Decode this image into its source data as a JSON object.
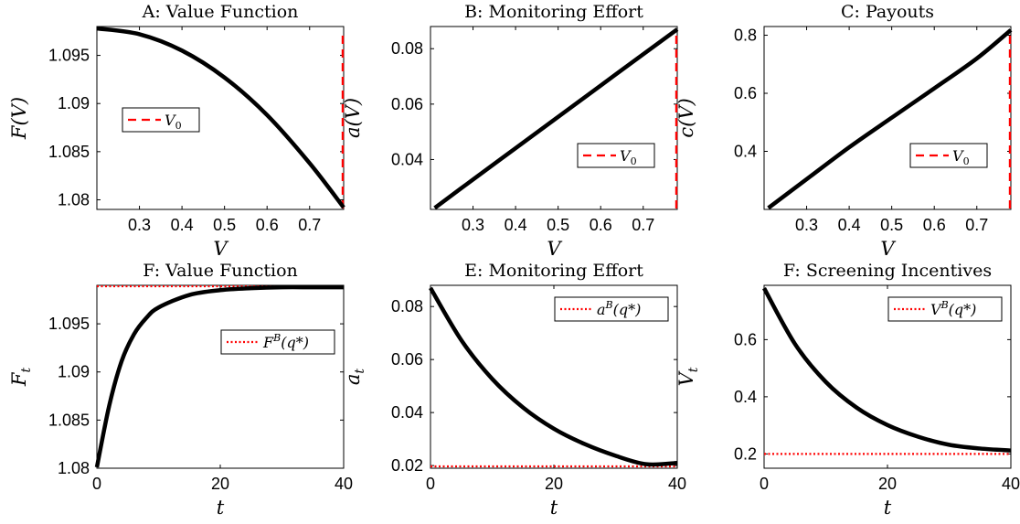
{
  "colors": {
    "curve": "#000000",
    "ref": "#ff0000"
  },
  "chart_data": [
    {
      "type": "line",
      "title": "A: Value Function",
      "xlabel": "V",
      "ylabel": "F(V)",
      "xlim": [
        0.2,
        0.78
      ],
      "ylim": [
        1.079,
        1.098
      ],
      "xticks": [
        0.3,
        0.4,
        0.5,
        0.6,
        0.7
      ],
      "xticklabels": [
        "0.3",
        "0.4",
        "0.5",
        "0.6",
        "0.7"
      ],
      "yticks": [
        1.08,
        1.085,
        1.09,
        1.095
      ],
      "yticklabels": [
        "1.08",
        "1.085",
        "1.09",
        "1.095"
      ],
      "series": [
        {
          "x": [
            0.2,
            0.3,
            0.4,
            0.5,
            0.6,
            0.7,
            0.78
          ],
          "y": [
            1.0978,
            1.0972,
            1.0955,
            1.0927,
            1.0888,
            1.0838,
            1.0792
          ]
        }
      ],
      "ref": {
        "orient": "v",
        "value": 0.78,
        "style": "dashed",
        "label": "V",
        "sub": "0",
        "sup": "",
        "tail": ""
      },
      "legend": "middle-left"
    },
    {
      "type": "line",
      "title": "B: Monitoring Effort",
      "xlabel": "V",
      "ylabel": "a(V)",
      "xlim": [
        0.2,
        0.78
      ],
      "ylim": [
        0.022,
        0.088
      ],
      "xticks": [
        0.3,
        0.4,
        0.5,
        0.6,
        0.7
      ],
      "xticklabels": [
        "0.3",
        "0.4",
        "0.5",
        "0.6",
        "0.7"
      ],
      "yticks": [
        0.04,
        0.06,
        0.08
      ],
      "yticklabels": [
        "0.04",
        "0.06",
        "0.08"
      ],
      "series": [
        {
          "x": [
            0.21,
            0.3,
            0.4,
            0.5,
            0.6,
            0.7,
            0.78
          ],
          "y": [
            0.0225,
            0.0328,
            0.0441,
            0.0554,
            0.0667,
            0.078,
            0.087
          ]
        }
      ],
      "ref": {
        "orient": "v",
        "value": 0.78,
        "style": "dashed",
        "label": "V",
        "sub": "0",
        "sup": "",
        "tail": ""
      },
      "legend": "bottom-right"
    },
    {
      "type": "line",
      "title": "C: Payouts",
      "xlabel": "V",
      "ylabel": "c(V)",
      "xlim": [
        0.2,
        0.78
      ],
      "ylim": [
        0.2,
        0.83
      ],
      "xticks": [
        0.3,
        0.4,
        0.5,
        0.6,
        0.7
      ],
      "xticklabels": [
        "0.3",
        "0.4",
        "0.5",
        "0.6",
        "0.7"
      ],
      "yticks": [
        0.4,
        0.6,
        0.8
      ],
      "yticklabels": [
        "0.4",
        "0.6",
        "0.8"
      ],
      "series": [
        {
          "x": [
            0.21,
            0.3,
            0.4,
            0.5,
            0.6,
            0.7,
            0.78
          ],
          "y": [
            0.205,
            0.304,
            0.414,
            0.516,
            0.617,
            0.72,
            0.818
          ]
        }
      ],
      "ref": {
        "orient": "v",
        "value": 0.78,
        "style": "dashed",
        "label": "V",
        "sub": "0",
        "sup": "",
        "tail": ""
      },
      "legend": "bottom-right"
    },
    {
      "type": "line",
      "title": "F: Value Function",
      "xlabel": "t",
      "ylabel": "F",
      "ylabel_sub": "t",
      "xlim": [
        0,
        40
      ],
      "ylim": [
        1.08,
        1.099
      ],
      "xticks": [
        0,
        20,
        40
      ],
      "xticklabels": [
        "0",
        "20",
        "40"
      ],
      "yticks": [
        1.08,
        1.085,
        1.09,
        1.095
      ],
      "yticklabels": [
        "1.08",
        "1.085",
        "1.09",
        "1.095"
      ],
      "series": [
        {
          "x": [
            0,
            2,
            4,
            6,
            8,
            10,
            15,
            20,
            25,
            30,
            35,
            40
          ],
          "y": [
            1.0801,
            1.0865,
            1.0911,
            1.0939,
            1.0956,
            1.0967,
            1.098,
            1.0985,
            1.0987,
            1.0988,
            1.0988,
            1.0988
          ]
        }
      ],
      "ref": {
        "orient": "h",
        "value": 1.0989,
        "style": "dotted",
        "label": "F",
        "sub": "",
        "sup": "B",
        "tail": "(q*)"
      },
      "legend": "upper-right"
    },
    {
      "type": "line",
      "title": "E: Monitoring Effort",
      "xlabel": "t",
      "ylabel": "a",
      "ylabel_sub": "t",
      "xlim": [
        0,
        40
      ],
      "ylim": [
        0.019,
        0.088
      ],
      "xticks": [
        0,
        20,
        40
      ],
      "xticklabels": [
        "0",
        "20",
        "40"
      ],
      "yticks": [
        0.02,
        0.04,
        0.06,
        0.08
      ],
      "yticklabels": [
        "0.02",
        "0.04",
        "0.06",
        "0.08"
      ],
      "series": [
        {
          "x": [
            0,
            5,
            10,
            15,
            20,
            25,
            30,
            35,
            40
          ],
          "y": [
            0.087,
            0.0673,
            0.0527,
            0.0419,
            0.0339,
            0.0281,
            0.0237,
            0.0205,
            0.021
          ]
        }
      ],
      "ref": {
        "orient": "h",
        "value": 0.0197,
        "style": "dotted",
        "label": "a",
        "sub": "",
        "sup": "B",
        "tail": "(q*)"
      },
      "legend": "top-right"
    },
    {
      "type": "line",
      "title": "F: Screening Incentives",
      "xlabel": "t",
      "ylabel": "V",
      "ylabel_sub": "t",
      "xlim": [
        0,
        40
      ],
      "ylim": [
        0.15,
        0.79
      ],
      "xticks": [
        0,
        20,
        40
      ],
      "xticklabels": [
        "0",
        "20",
        "40"
      ],
      "yticks": [
        0.2,
        0.4,
        0.6
      ],
      "yticklabels": [
        "0.2",
        "0.4",
        "0.6"
      ],
      "series": [
        {
          "x": [
            0,
            5,
            10,
            15,
            20,
            25,
            30,
            35,
            40
          ],
          "y": [
            0.78,
            0.585,
            0.452,
            0.362,
            0.301,
            0.26,
            0.232,
            0.219,
            0.212
          ]
        }
      ],
      "ref": {
        "orient": "h",
        "value": 0.2,
        "style": "dotted",
        "label": "V",
        "sub": "",
        "sup": "B",
        "tail": "(q*)"
      },
      "legend": "top-right"
    }
  ]
}
